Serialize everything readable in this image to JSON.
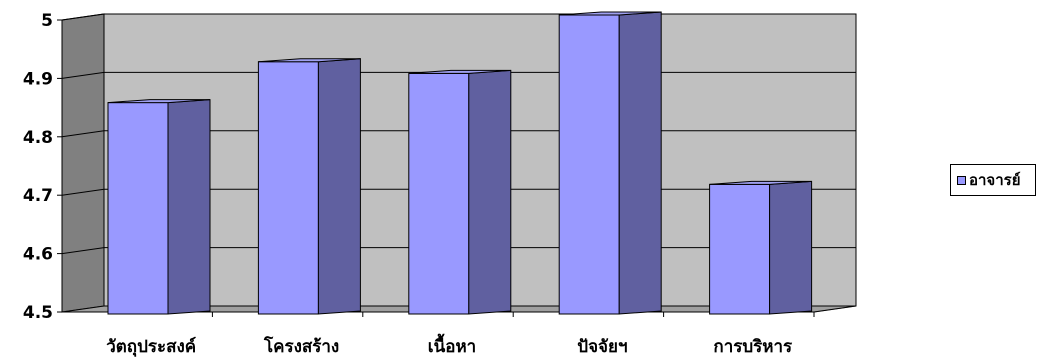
{
  "chart_data": {
    "type": "bar",
    "categories": [
      "วัตถุประสงค์",
      "โครงสร้าง",
      "เนื้อหา",
      "ปัจจัยฯ",
      "การบริหาร"
    ],
    "series": [
      {
        "name": "อาจารย์",
        "values": [
          4.85,
          4.92,
          4.9,
          5.0,
          4.71
        ]
      }
    ],
    "ylim": [
      4.5,
      5.0
    ],
    "yticks": [
      "4.5",
      "4.6",
      "4.7",
      "4.8",
      "4.9",
      "5"
    ],
    "grid": true,
    "legend_position": "right",
    "colors": {
      "bar_front": "#9999ff",
      "bar_side": "#6060a0",
      "bar_top": "#9fa0f0",
      "wall": "#c0c0c0",
      "side_wall": "#808080",
      "floor": "#a0a0a0"
    }
  },
  "legend": {
    "label": "อาจารย์"
  }
}
